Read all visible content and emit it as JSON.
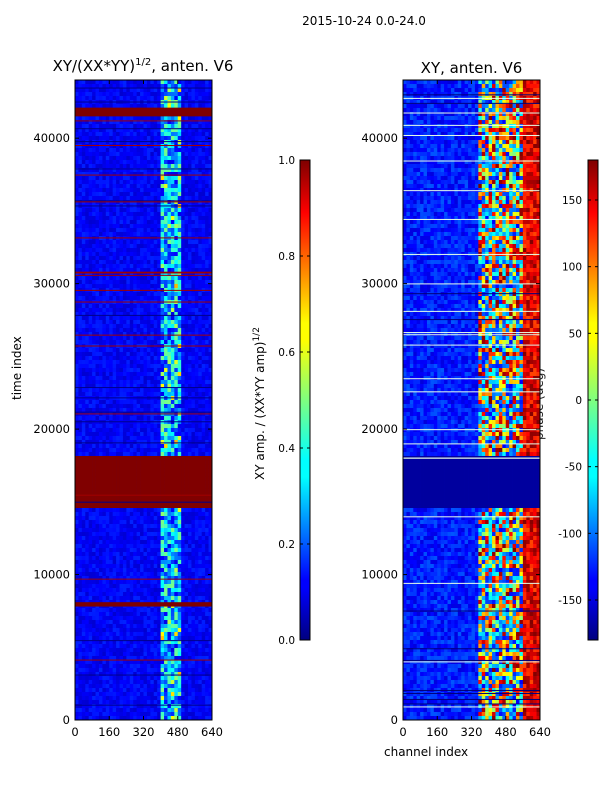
{
  "figure_title": "2015-10-24 0.0-24.0",
  "chart_data": [
    {
      "type": "heatmap",
      "title": "XY/(XX*YY)",
      "title_exponent": "1/2",
      "title_suffix": ", anten. V6",
      "xlabel": "",
      "ylabel": "time index",
      "xlim": [
        0,
        640
      ],
      "ylim": [
        0,
        44000
      ],
      "xticks": [
        0,
        160,
        320,
        480,
        640
      ],
      "yticks": [
        0,
        10000,
        20000,
        30000,
        40000
      ],
      "colorbar": {
        "label": "XY amp. / (XX*YY amp)",
        "label_exponent": "1/2",
        "range": [
          0.0,
          1.0
        ],
        "ticks": [
          "0.0",
          "0.2",
          "0.4",
          "0.6",
          "0.8",
          "1.0"
        ],
        "colormap": "jet"
      },
      "features": {
        "background_value": 0.1,
        "high_band_channels": [
          400,
          500
        ],
        "saturated_time_blocks": [
          [
            14500,
            18200
          ],
          [
            41500,
            42100
          ],
          [
            7800,
            8100
          ]
        ]
      }
    },
    {
      "type": "heatmap",
      "title": "XY, anten. V6",
      "xlabel": "channel index",
      "ylabel": "",
      "xlim": [
        0,
        640
      ],
      "ylim": [
        0,
        44000
      ],
      "xticks": [
        0,
        160,
        320,
        480,
        640
      ],
      "yticks": [
        0,
        10000,
        20000,
        30000,
        40000
      ],
      "colorbar": {
        "label": "phase (deg)",
        "range": [
          -180,
          180
        ],
        "ticks": [
          "-150",
          "-100",
          "-50",
          "0",
          "50",
          "100",
          "150"
        ],
        "colormap": "jet"
      },
      "features": {
        "background_value": -140,
        "dark_time_block": [
          14500,
          18200
        ],
        "high_phase_channels": [
          400,
          640
        ]
      }
    }
  ]
}
